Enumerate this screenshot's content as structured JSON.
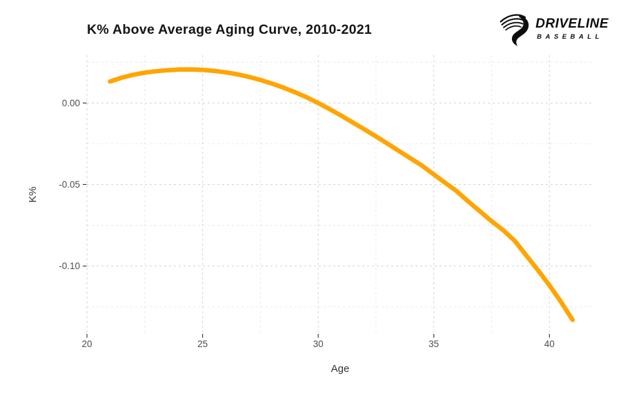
{
  "page": {
    "background": "#ffffff"
  },
  "logo": {
    "brand": "DRIVELINE",
    "sub": "BASEBALL",
    "color": "#0d0d0d",
    "icon": "driveline-swoosh-icon"
  },
  "chart_data": {
    "type": "line",
    "title": "K% Above Average Aging Curve, 2010-2021",
    "xlabel": "Age",
    "ylabel": "K%",
    "xlim": [
      20,
      41.9
    ],
    "ylim": [
      -0.1412,
      0.0293
    ],
    "x_ticks": [
      20,
      25,
      30,
      35,
      40
    ],
    "x_tick_labels": [
      "20",
      "25",
      "30",
      "35",
      "40"
    ],
    "x_minor_ticks": [
      22.5,
      27.5,
      32.5,
      37.5
    ],
    "y_ticks": [
      0,
      -0.05,
      -0.1
    ],
    "y_tick_labels": [
      "0.00",
      "-0.05",
      "-0.10"
    ],
    "y_minor_ticks": [
      0.025,
      -0.025,
      -0.075,
      -0.125
    ],
    "grid": "dashed",
    "legend": "none",
    "line_color": "#FFA502",
    "line_width": 6.5,
    "major_grid_color": "#d6d6d6",
    "minor_grid_color": "#e5e5e5",
    "tick_color": "#3a3a3a",
    "series": [
      {
        "name": "K% above average",
        "x": [
          21,
          21.5,
          22,
          22.5,
          23,
          23.5,
          24,
          24.5,
          25,
          25.5,
          26,
          26.5,
          27,
          27.5,
          28,
          28.5,
          29,
          29.5,
          30,
          30.5,
          31,
          31.5,
          32,
          32.5,
          33,
          33.5,
          34,
          34.5,
          35,
          35.5,
          36,
          36.5,
          37,
          37.5,
          38,
          38.5,
          39,
          39.5,
          40,
          40.5,
          41
        ],
        "y": [
          0.0132,
          0.0155,
          0.0173,
          0.0186,
          0.0195,
          0.0201,
          0.0205,
          0.0206,
          0.0203,
          0.0197,
          0.0188,
          0.0176,
          0.016,
          0.0141,
          0.0119,
          0.0094,
          0.0066,
          0.0035,
          0.0,
          -0.0038,
          -0.0078,
          -0.012,
          -0.0162,
          -0.0205,
          -0.025,
          -0.0295,
          -0.034,
          -0.0385,
          -0.0438,
          -0.049,
          -0.0542,
          -0.0605,
          -0.0665,
          -0.0725,
          -0.078,
          -0.0845,
          -0.0935,
          -0.1025,
          -0.1118,
          -0.122,
          -0.133
        ]
      }
    ]
  }
}
